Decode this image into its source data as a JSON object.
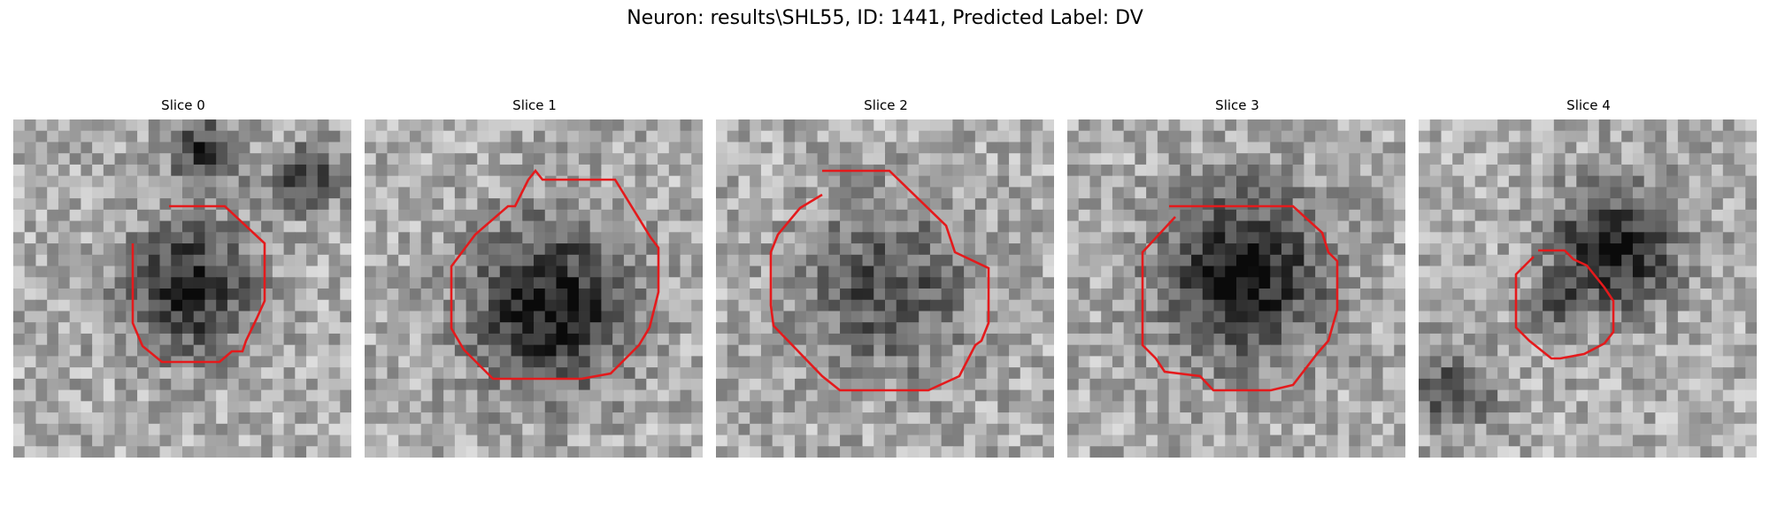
{
  "figure": {
    "title": "Neuron: results\\SHL55, ID: 1441, Predicted Label: DV"
  },
  "panels": [
    {
      "label": "Slice 0"
    },
    {
      "label": "Slice 1"
    },
    {
      "label": "Slice 2"
    },
    {
      "label": "Slice 3"
    },
    {
      "label": "Slice 4"
    }
  ],
  "colors": {
    "contour": "#e41a1c",
    "background": "#ffffff"
  }
}
